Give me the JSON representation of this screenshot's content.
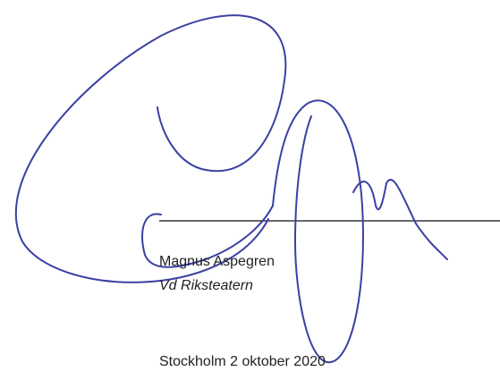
{
  "signature": {
    "name": "Magnus Aspegren",
    "title": "Vd Riksteatern"
  },
  "place_date": "Stockholm 2 oktober 2020"
}
